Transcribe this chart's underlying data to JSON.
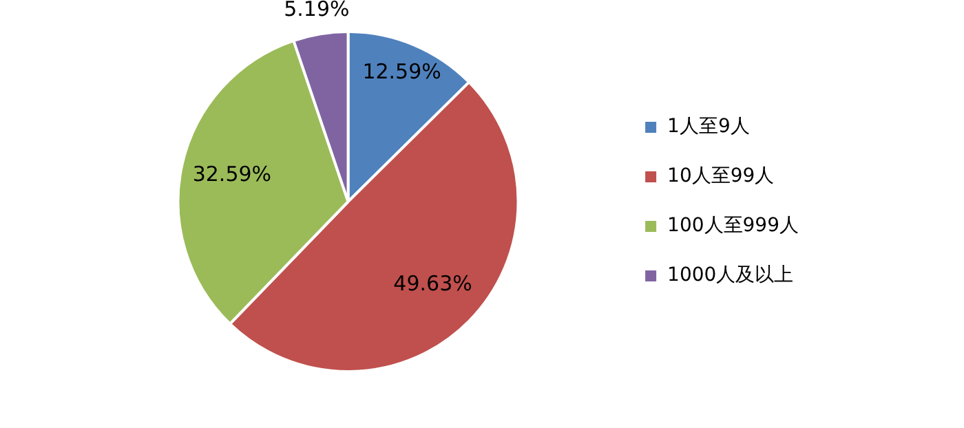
{
  "chart_data": {
    "type": "pie",
    "categories": [
      "1人至9人",
      "10人至99人",
      "100人至999人",
      "1000人及以上"
    ],
    "values": [
      12.59,
      49.63,
      32.59,
      5.19
    ],
    "colors": [
      "#4f81bd",
      "#c0504d",
      "#9bbb59",
      "#8064a2"
    ],
    "value_labels": [
      "12.59%",
      "49.63%",
      "32.59%",
      "5.19%"
    ],
    "legend": "right"
  }
}
